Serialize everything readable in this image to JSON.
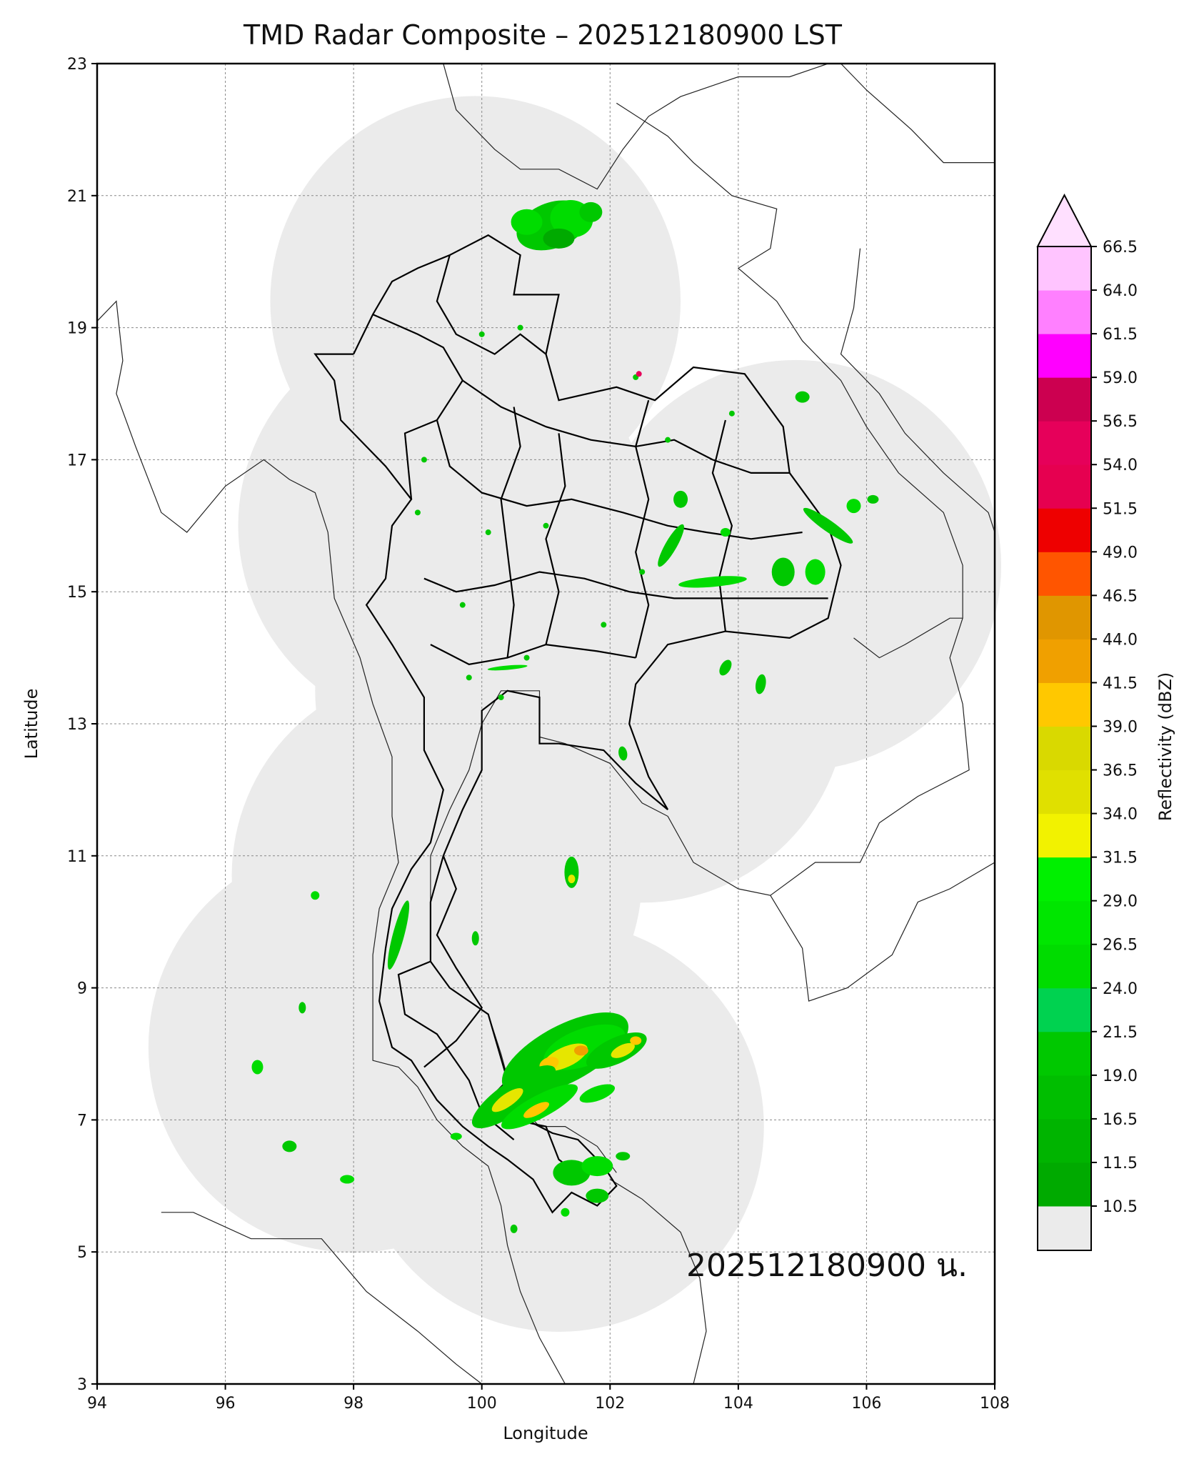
{
  "title": "TMD Radar Composite – 202512180900 LST",
  "timestamp_label": "202512180900 น.",
  "chart_data": {
    "type": "map",
    "projection": "plate-carree",
    "xlabel": "Longitude",
    "ylabel": "Latitude",
    "xlim": [
      94,
      108
    ],
    "ylim": [
      3,
      23
    ],
    "xticks": [
      94,
      96,
      98,
      100,
      102,
      104,
      106,
      108
    ],
    "yticks": [
      3,
      5,
      7,
      9,
      11,
      13,
      15,
      17,
      19,
      21,
      23
    ],
    "grid": true,
    "radar_coverage_color": "#ebebeb",
    "colorbar": {
      "label": "Reflectivity (dBZ)",
      "orientation": "vertical",
      "extend": "max",
      "ticks": [
        "10.5",
        "11.5",
        "16.5",
        "19.0",
        "21.5",
        "24.0",
        "26.5",
        "29.0",
        "31.5",
        "34.0",
        "36.5",
        "39.0",
        "41.5",
        "44.0",
        "46.5",
        "49.0",
        "51.5",
        "54.0",
        "56.5",
        "59.0",
        "61.5",
        "64.0",
        "66.5"
      ],
      "colors": [
        "#ebebeb",
        "#00aa00",
        "#00b400",
        "#00be00",
        "#00c800",
        "#00d250",
        "#00dc00",
        "#00e600",
        "#00f000",
        "#f2f200",
        "#e0e000",
        "#d9d900",
        "#ffc800",
        "#f0a000",
        "#e09600",
        "#ff5500",
        "#ee0000",
        "#e60050",
        "#e6005a",
        "#cc0050",
        "#ff00ff",
        "#ff80ff",
        "#ffc4ff",
        "#ffe0ff"
      ],
      "overflow_color": "#ffe0ff"
    },
    "echo_regions": [
      {
        "lon": 101.3,
        "lat": 7.9,
        "max_dbz": 39.0
      },
      {
        "lon": 100.6,
        "lat": 7.1,
        "max_dbz": 36.5
      },
      {
        "lon": 102.2,
        "lat": 8.0,
        "max_dbz": 36.5
      },
      {
        "lon": 101.0,
        "lat": 20.4,
        "max_dbz": 29.0
      },
      {
        "lon": 103.3,
        "lat": 15.2,
        "max_dbz": 26.5
      },
      {
        "lon": 104.8,
        "lat": 15.3,
        "max_dbz": 26.5
      },
      {
        "lon": 101.4,
        "lat": 10.8,
        "max_dbz": 31.5
      }
    ]
  }
}
